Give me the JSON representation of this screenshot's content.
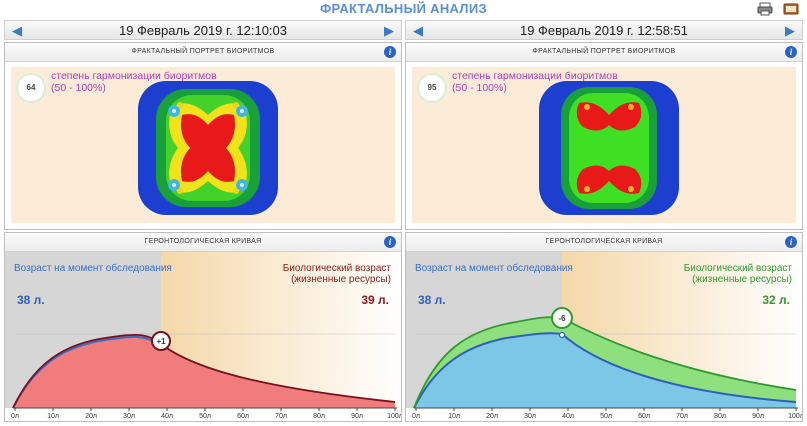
{
  "app": {
    "title": "ФРАКТАЛЬНЫЙ АНАЛИЗ"
  },
  "toolbar": {
    "print_icon": "printer-icon",
    "book_icon": "book-icon"
  },
  "left": {
    "date": "19 Февраль 2019 г. 12:10:03",
    "fractal": {
      "title": "ФРАКТАЛЬНЫЙ ПОРТРЕТ БИОРИТМОВ",
      "badge": "64",
      "label": "степень гармонизации биоритмов",
      "range": "(50 - 100%)"
    },
    "curve": {
      "title": "ГЕРОНТОЛОГИЧЕСКАЯ КРИВАЯ",
      "exam_label": "Возраст на момент обследования",
      "bio_label": "Биологический возраст (жизненные ресурсы)",
      "exam_age": "38 л.",
      "bio_age": "39 л.",
      "delta": "+1",
      "accent": "#8b1a1a"
    }
  },
  "right": {
    "date": "19 Февраль 2019 г. 12:58:51",
    "fractal": {
      "title": "ФРАКТАЛЬНЫЙ ПОРТРЕТ БИОРИТМОВ",
      "badge": "95",
      "label": "степень гармонизации биоритмов",
      "range": "(50 - 100%)"
    },
    "curve": {
      "title": "ГЕРОНТОЛОГИЧЕСКАЯ КРИВАЯ",
      "exam_label": "Возраст на момент обследования",
      "bio_label": "Биологический возраст (жизненные ресурсы)",
      "exam_age": "38 л.",
      "bio_age": "32 л.",
      "delta": "-6",
      "accent": "#2f9a2f"
    }
  },
  "chart_data": [
    {
      "type": "area",
      "x_ticks": [
        "0л",
        "10л",
        "20л",
        "30л",
        "40л",
        "50л",
        "60л",
        "70л",
        "80л",
        "90л",
        "100л"
      ],
      "exam_age": 38,
      "bio_age": 39,
      "delta": "+1",
      "colors": {
        "exam_fill": "#9fb4d8",
        "bio_fill": "#f07c7c",
        "bio_line": "#7a1020"
      }
    },
    {
      "type": "area",
      "x_ticks": [
        "0л",
        "10л",
        "20л",
        "30л",
        "40л",
        "50л",
        "60л",
        "70л",
        "80л",
        "90л",
        "100л"
      ],
      "exam_age": 38,
      "bio_age": 32,
      "delta": "-6",
      "colors": {
        "exam_fill": "#7cc6e6",
        "bio_fill": "#8ee07e",
        "bio_line": "#2f9a2f"
      }
    }
  ]
}
